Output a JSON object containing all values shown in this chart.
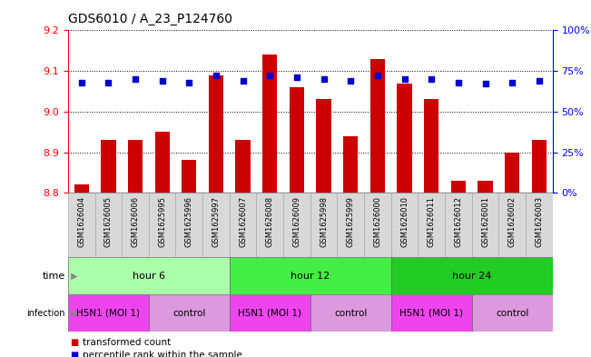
{
  "title": "GDS6010 / A_23_P124760",
  "samples": [
    "GSM1626004",
    "GSM1626005",
    "GSM1626006",
    "GSM1625995",
    "GSM1625996",
    "GSM1625997",
    "GSM1626007",
    "GSM1626008",
    "GSM1626009",
    "GSM1625998",
    "GSM1625999",
    "GSM1626000",
    "GSM1626010",
    "GSM1626011",
    "GSM1626012",
    "GSM1626001",
    "GSM1626002",
    "GSM1626003"
  ],
  "transformed_counts": [
    8.82,
    8.93,
    8.93,
    8.95,
    8.88,
    9.09,
    8.93,
    9.14,
    9.06,
    9.03,
    8.94,
    9.13,
    9.07,
    9.03,
    8.83,
    8.83,
    8.9,
    8.93
  ],
  "percentile_ranks": [
    68,
    68,
    70,
    69,
    68,
    72,
    69,
    72,
    71,
    70,
    69,
    72,
    70,
    70,
    68,
    67,
    68,
    69
  ],
  "ylim_left": [
    8.8,
    9.2
  ],
  "ylim_right": [
    0,
    100
  ],
  "yticks_left": [
    8.8,
    8.9,
    9.0,
    9.1,
    9.2
  ],
  "yticks_right": [
    0,
    25,
    50,
    75,
    100
  ],
  "ytick_labels_right": [
    "0%",
    "25%",
    "50%",
    "75%",
    "100%"
  ],
  "bar_color": "#cc0000",
  "dot_color": "#0000cc",
  "time_groups": [
    {
      "label": "hour 6",
      "start": 0,
      "end": 5,
      "color": "#aaffaa"
    },
    {
      "label": "hour 12",
      "start": 6,
      "end": 11,
      "color": "#44ee44"
    },
    {
      "label": "hour 24",
      "start": 12,
      "end": 17,
      "color": "#22cc22"
    }
  ],
  "infection_groups": [
    {
      "label": "H5N1 (MOI 1)",
      "start": 0,
      "end": 2,
      "color": "#ee44ee"
    },
    {
      "label": "control",
      "start": 3,
      "end": 5,
      "color": "#dd99dd"
    },
    {
      "label": "H5N1 (MOI 1)",
      "start": 6,
      "end": 8,
      "color": "#ee44ee"
    },
    {
      "label": "control",
      "start": 9,
      "end": 11,
      "color": "#dd99dd"
    },
    {
      "label": "H5N1 (MOI 1)",
      "start": 12,
      "end": 14,
      "color": "#ee44ee"
    },
    {
      "label": "control",
      "start": 15,
      "end": 17,
      "color": "#dd99dd"
    }
  ],
  "legend_items": [
    {
      "label": "transformed count",
      "color": "#cc0000"
    },
    {
      "label": "percentile rank within the sample",
      "color": "#0000cc"
    }
  ],
  "sample_bg_color": "#d8d8d8",
  "sample_border_color": "#aaaaaa"
}
